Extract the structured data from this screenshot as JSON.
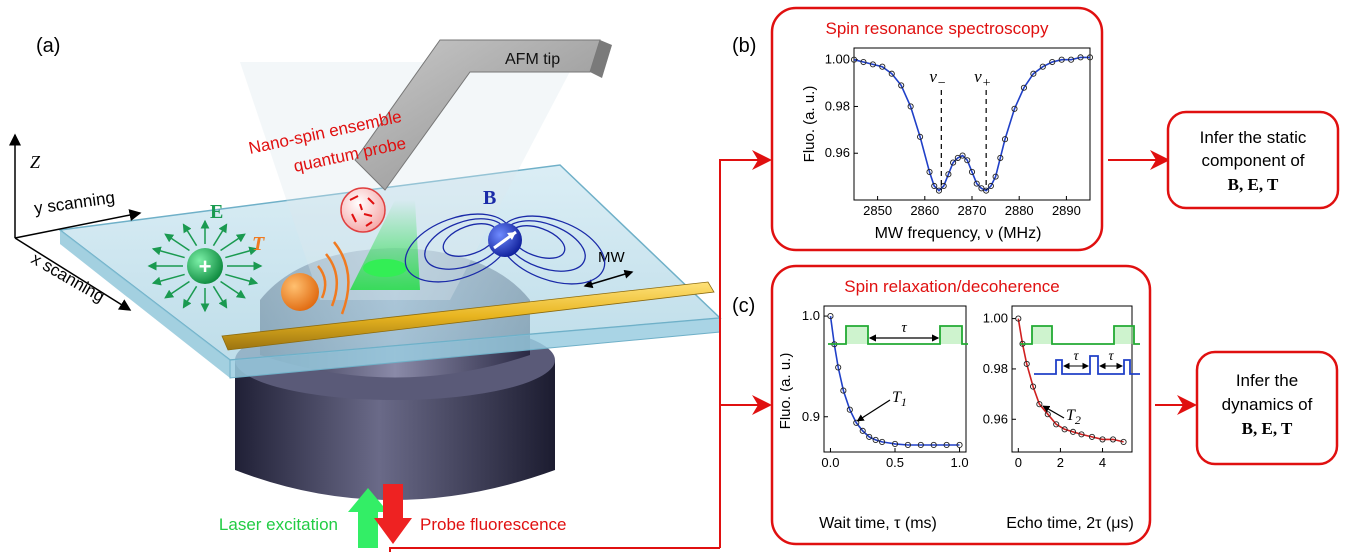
{
  "panel_a": {
    "label": "(a)",
    "afm_tip": "AFM tip",
    "probe_title_line1": "Nano-spin ensemble",
    "probe_title_line2": "quantum probe",
    "axis_z": "Z",
    "axis_y": "y scanning",
    "axis_x": "x scanning",
    "field_e": "E",
    "field_b": "B",
    "temp_t": "T",
    "mw": "MW",
    "laser": "Laser excitation",
    "fluorescence": "Probe fluorescence",
    "plus_sign": "+",
    "colors": {
      "laser": "#33dd55",
      "fluor": "#ee2222",
      "e_field": "#1a9a50",
      "b_field": "#1a2aa8",
      "t_color": "#f07a20"
    }
  },
  "panel_b": {
    "label": "(b)",
    "title": "Spin resonance spectroscopy",
    "ylabel": "Fluo.  (a. u.)",
    "xlabel": "MW frequency, ν  (MHz)",
    "nu_minus": "ν",
    "nu_minus_sub": "−",
    "nu_plus": "ν",
    "nu_plus_sub": "+",
    "infer_line1": "Infer the static",
    "infer_line2": "component of",
    "infer_line3": "B, E, T"
  },
  "panel_c": {
    "label": "(c)",
    "title": "Spin relaxation/decoherence",
    "ylabel": "Fluo.  (a. u.)",
    "xlabel_left": "Wait time, τ  (ms)",
    "xlabel_right": "Echo time, 2τ  (μs)",
    "tau": "τ",
    "t1": "T",
    "t1_sub": "1",
    "t2": "T",
    "t2_sub": "2",
    "infer_line1": "Infer the",
    "infer_line2": "dynamics of",
    "infer_line3": "B, E, T"
  },
  "chart_data": [
    {
      "type": "line",
      "title": "Spin resonance spectroscopy",
      "xlabel": "MW frequency, ν (MHz)",
      "ylabel": "Fluo. (a. u.)",
      "xlim": [
        2845,
        2895
      ],
      "ylim": [
        0.94,
        1.005
      ],
      "xticks": [
        "2850",
        "2860",
        "2870",
        "2880",
        "2890"
      ],
      "yticks": [
        "0.96",
        "0.98",
        "1.00"
      ],
      "series": [
        {
          "x": [
            2845,
            2847,
            2849,
            2851,
            2853,
            2855,
            2857,
            2859,
            2861,
            2862,
            2863,
            2864,
            2865,
            2866,
            2867,
            2868,
            2869,
            2870,
            2871,
            2872,
            2873,
            2874,
            2875,
            2876,
            2877,
            2879,
            2881,
            2883,
            2885,
            2887,
            2889,
            2891,
            2893,
            2895
          ],
          "y": [
            1.0,
            0.999,
            0.998,
            0.997,
            0.994,
            0.989,
            0.98,
            0.967,
            0.952,
            0.946,
            0.944,
            0.946,
            0.951,
            0.956,
            0.958,
            0.959,
            0.957,
            0.952,
            0.947,
            0.945,
            0.944,
            0.946,
            0.95,
            0.958,
            0.966,
            0.979,
            0.988,
            0.994,
            0.997,
            0.999,
            1.0,
            1.0,
            1.001,
            1.001
          ]
        }
      ]
    },
    {
      "type": "line",
      "xlabel": "Wait time, τ (ms)",
      "ylabel": "Fluo. (a. u.)",
      "xlim": [
        -0.05,
        1.05
      ],
      "ylim": [
        0.865,
        1.01
      ],
      "xticks": [
        "0.0",
        "0.5",
        "1.0"
      ],
      "yticks": [
        "0.9",
        "1.0"
      ],
      "series": [
        {
          "x": [
            0.0,
            0.03,
            0.06,
            0.1,
            0.15,
            0.2,
            0.25,
            0.3,
            0.35,
            0.4,
            0.5,
            0.6,
            0.7,
            0.8,
            0.9,
            1.0
          ],
          "y": [
            1.0,
            0.972,
            0.949,
            0.926,
            0.907,
            0.894,
            0.886,
            0.88,
            0.877,
            0.875,
            0.873,
            0.872,
            0.872,
            0.872,
            0.872,
            0.872
          ]
        }
      ]
    },
    {
      "type": "line",
      "xlabel": "Echo time, 2τ (μs)",
      "xlim": [
        -0.3,
        5.4
      ],
      "ylim": [
        0.947,
        1.005
      ],
      "xticks": [
        "0",
        "2",
        "4"
      ],
      "yticks": [
        "0.96",
        "0.98",
        "1.00"
      ],
      "series": [
        {
          "x": [
            0.0,
            0.2,
            0.4,
            0.7,
            1.0,
            1.4,
            1.8,
            2.2,
            2.6,
            3.0,
            3.5,
            4.0,
            4.5,
            5.0
          ],
          "y": [
            1.0,
            0.99,
            0.982,
            0.973,
            0.966,
            0.962,
            0.958,
            0.956,
            0.955,
            0.954,
            0.953,
            0.952,
            0.952,
            0.951
          ]
        }
      ]
    }
  ]
}
